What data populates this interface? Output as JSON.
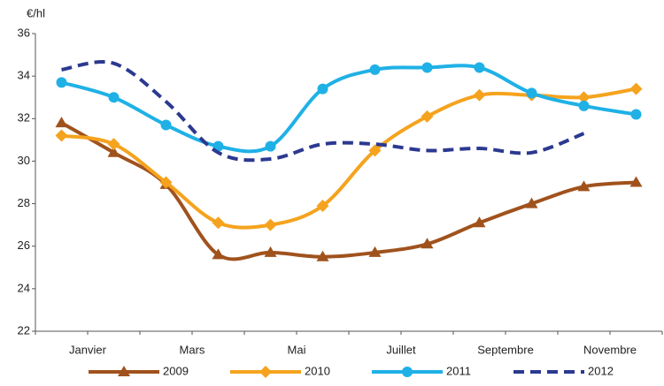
{
  "chart_data": {
    "type": "line",
    "y_unit": "€/hl",
    "categories": [
      "Janvier",
      null,
      "Mars",
      null,
      "Mai",
      null,
      "Juillet",
      null,
      "Septembre",
      null,
      "Novembre",
      null
    ],
    "series": [
      {
        "name": "2009",
        "color": "#a0521d",
        "marker": "triangle",
        "dashed": false,
        "values": [
          31.8,
          30.4,
          28.9,
          25.6,
          25.7,
          25.5,
          25.7,
          26.1,
          27.1,
          28.0,
          28.8,
          29.0
        ]
      },
      {
        "name": "2010",
        "color": "#f5a31e",
        "marker": "diamond",
        "dashed": false,
        "values": [
          31.2,
          30.8,
          29.0,
          27.1,
          27.0,
          27.9,
          30.5,
          32.1,
          33.1,
          33.1,
          33.0,
          33.4
        ]
      },
      {
        "name": "2011",
        "color": "#1fb1e6",
        "marker": "circle",
        "dashed": false,
        "values": [
          33.7,
          33.0,
          31.7,
          30.7,
          30.7,
          33.4,
          34.3,
          34.4,
          34.4,
          33.2,
          32.6,
          32.2
        ]
      },
      {
        "name": "2012",
        "color": "#2b3990",
        "marker": "none",
        "dashed": true,
        "values": [
          34.3,
          34.6,
          32.8,
          30.4,
          30.1,
          30.8,
          30.8,
          30.5,
          30.6,
          30.4,
          31.3,
          null
        ]
      }
    ],
    "ylim": [
      22,
      36
    ],
    "yticks": [
      22,
      24,
      26,
      28,
      30,
      32,
      34,
      36
    ],
    "grid": false,
    "legend": "bottom"
  }
}
